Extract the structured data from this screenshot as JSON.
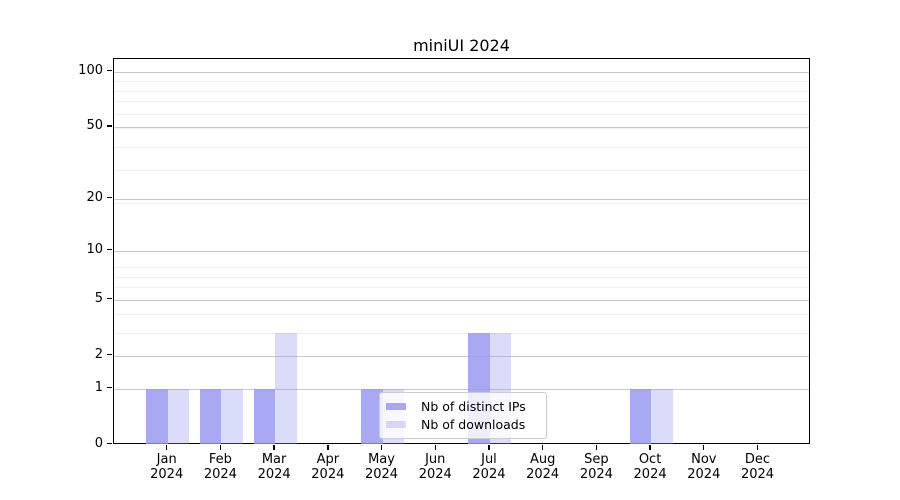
{
  "title": "miniUI 2024",
  "chart_data": {
    "type": "bar",
    "title": "miniUI 2024",
    "x_categories": [
      "Jan",
      "Feb",
      "Mar",
      "Apr",
      "May",
      "Jun",
      "Jul",
      "Aug",
      "Sep",
      "Oct",
      "Nov",
      "Dec"
    ],
    "x_year": "2024",
    "series": [
      {
        "name": "Nb of distinct IPs",
        "color": "rgba(150,150,240,0.83)",
        "values": [
          1,
          1,
          1,
          0,
          1,
          0,
          3,
          0,
          0,
          1,
          0,
          0
        ]
      },
      {
        "name": "Nb of downloads",
        "color": "rgba(150,150,240,0.34)",
        "values": [
          1,
          1,
          3,
          0,
          1,
          0,
          3,
          0,
          0,
          1,
          0,
          0
        ]
      }
    ],
    "y_axis": {
      "scale": "log1p",
      "major_ticks": [
        0,
        1,
        2,
        5,
        10,
        20,
        50,
        100
      ],
      "minor_ticks": [
        3,
        4,
        6,
        7,
        8,
        19,
        29,
        39,
        49,
        59,
        69,
        79,
        89
      ],
      "ylim": [
        0,
        118
      ]
    },
    "grid": "horizontal",
    "legend_position": "lower-center",
    "colors": {
      "bar_dark_hex": "#a9abf2",
      "bar_light_hex": "#dcdcfa",
      "grid_major": "#c9c9c9",
      "grid_minor": "#efefef",
      "axis": "#000000"
    }
  }
}
